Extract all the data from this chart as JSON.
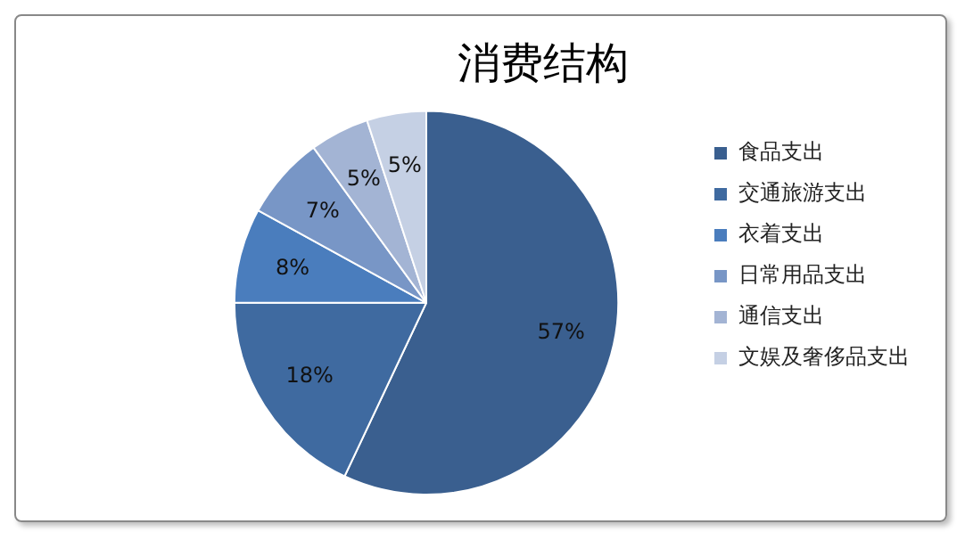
{
  "chart_data": {
    "type": "pie",
    "title": "消费结构",
    "categories": [
      "食品支出",
      "交通旅游支出",
      "衣着支出",
      "日常用品支出",
      "通信支出",
      "文娱及奢侈品支出"
    ],
    "values": [
      57,
      18,
      8,
      7,
      5,
      5
    ],
    "value_labels": [
      "57%",
      "18%",
      "8%",
      "7%",
      "5%",
      "5%"
    ],
    "colors": [
      "#3a5f8f",
      "#3f6aa0",
      "#4a7dbd",
      "#7896c6",
      "#a3b4d4",
      "#c5d0e4"
    ],
    "legend": "right"
  }
}
